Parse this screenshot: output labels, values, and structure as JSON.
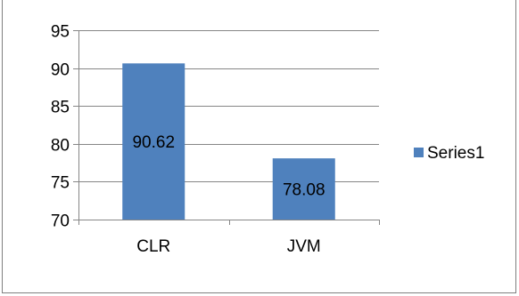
{
  "chart_data": {
    "type": "bar",
    "categories": [
      "CLR",
      "JVM"
    ],
    "series": [
      {
        "name": "Series1",
        "values": [
          90.62,
          78.08
        ],
        "color": "#4f81bd"
      }
    ],
    "data_labels": [
      "90.62",
      "78.08"
    ],
    "ylim": [
      70,
      95
    ],
    "yticks": [
      70,
      75,
      80,
      85,
      90,
      95
    ],
    "ytick_labels": [
      "70",
      "75",
      "80",
      "85",
      "90",
      "95"
    ],
    "grid": true,
    "gridline_color": "#868686",
    "legend_position": "right"
  }
}
